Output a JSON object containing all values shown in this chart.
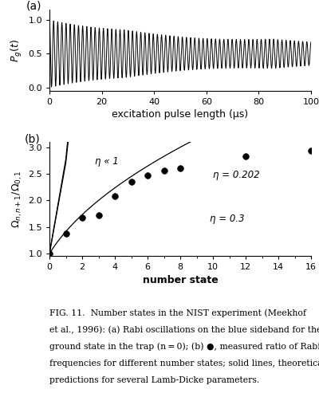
{
  "panel_a_label": "(a)",
  "panel_b_label": "(b)",
  "panel_a_xlabel": "excitation pulse length (μs)",
  "panel_a_ylabel": "$P_g(t)$",
  "panel_a_xlim": [
    0,
    100
  ],
  "panel_a_ylim": [
    -0.05,
    1.15
  ],
  "panel_a_yticks": [
    0.0,
    0.5,
    1.0
  ],
  "panel_a_xticks": [
    0,
    20,
    40,
    60,
    80,
    100
  ],
  "panel_b_xlabel": "number state",
  "panel_b_ylabel": "$\\Omega_{n,n+1}/\\Omega_{0,1}$",
  "panel_b_xlim": [
    0,
    16
  ],
  "panel_b_ylim": [
    0.95,
    3.1
  ],
  "panel_b_yticks": [
    1.0,
    1.5,
    2.0,
    2.5,
    3.0
  ],
  "panel_b_xticks": [
    0,
    2,
    4,
    6,
    8,
    10,
    12,
    14,
    16
  ],
  "eta_medium": 0.202,
  "eta_large": 0.3,
  "data_points_x": [
    0,
    1,
    2,
    3,
    4,
    5,
    6,
    7,
    8,
    12,
    16
  ],
  "data_points_y": [
    1.0,
    1.38,
    1.68,
    1.72,
    2.08,
    2.35,
    2.47,
    2.56,
    2.6,
    2.83,
    2.93
  ],
  "label_eta_small": "η « 1",
  "label_eta_medium": "η = 0.202",
  "label_eta_large": "η = 0.3",
  "fig_caption_line1": "FIG. 11.  Number states in the NIST experiment (Meekhof",
  "fig_caption_line2": "et al., 1996): (a) Rabi oscillations on the blue sideband for the",
  "fig_caption_line3": "ground state in the trap (n = 0); (b) ●, measured ratio of Rabi",
  "fig_caption_line4": "frequencies for different number states; solid lines, theoretical",
  "fig_caption_line5": "predictions for several Lamb-Dicke parameters.",
  "background_color": "#ffffff",
  "line_color": "#000000",
  "dot_color": "#000000",
  "omega_osc": 0.63,
  "decay_rate": 0.018,
  "decay_floor": 0.28,
  "beat_amp": 0.22,
  "beat_freq": 0.055
}
